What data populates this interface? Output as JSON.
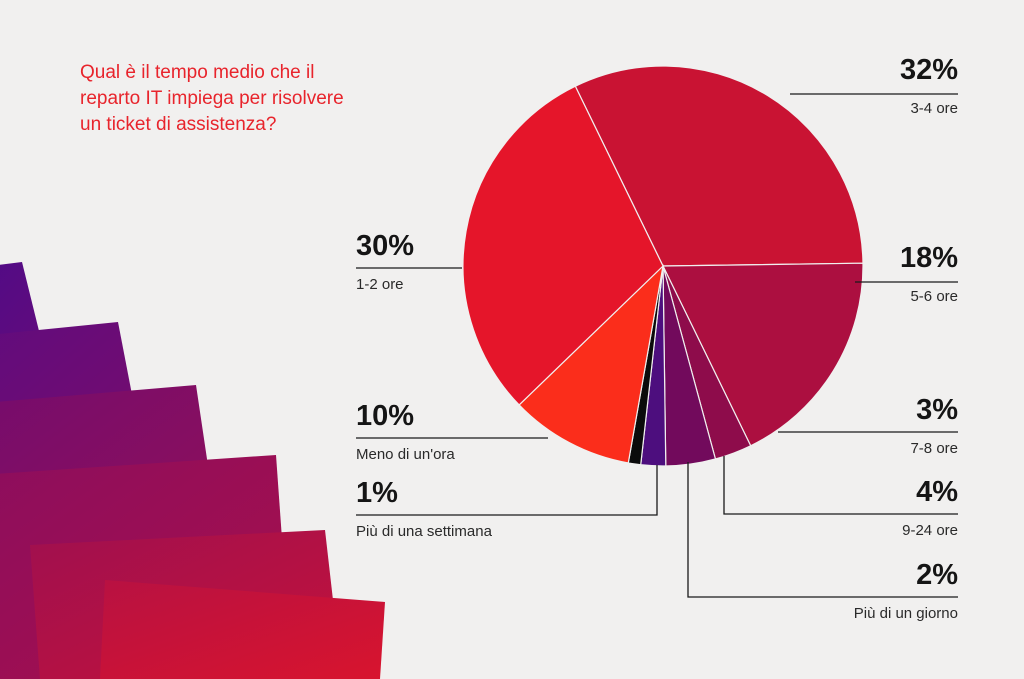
{
  "question_lines": [
    "Qual è il tempo medio che il",
    "reparto IT impiega per risolvere",
    "un ticket di assistenza?"
  ],
  "colors": {
    "background": "#f1f0ef",
    "question": "#e8242c",
    "leader_lines": "#1a1a1a"
  },
  "chart_data": {
    "type": "pie",
    "title": "Qual è il tempo medio che il reparto IT impiega per risolvere un ticket di assistenza?",
    "slices": [
      {
        "label": "3-4 ore",
        "pct_label": "32%",
        "value": 32,
        "color": "#c91333"
      },
      {
        "label": "5-6 ore",
        "pct_label": "18%",
        "value": 18,
        "color": "#ac0f40"
      },
      {
        "label": "7-8 ore",
        "pct_label": "3%",
        "value": 3,
        "color": "#8e0c4b"
      },
      {
        "label": "9-24 ore",
        "pct_label": "4%",
        "value": 4,
        "color": "#720a5c"
      },
      {
        "label": "Più di un giorno",
        "pct_label": "2%",
        "value": 2,
        "color": "#4d0e7e"
      },
      {
        "label": "Più di una settimana",
        "pct_label": "1%",
        "value": 1,
        "color": "#0b0b0b"
      },
      {
        "label": "Meno di un'ora",
        "pct_label": "10%",
        "value": 10,
        "color": "#fb2d1b"
      },
      {
        "label": "1-2 ore",
        "pct_label": "30%",
        "value": 30,
        "color": "#e5152a"
      }
    ]
  }
}
